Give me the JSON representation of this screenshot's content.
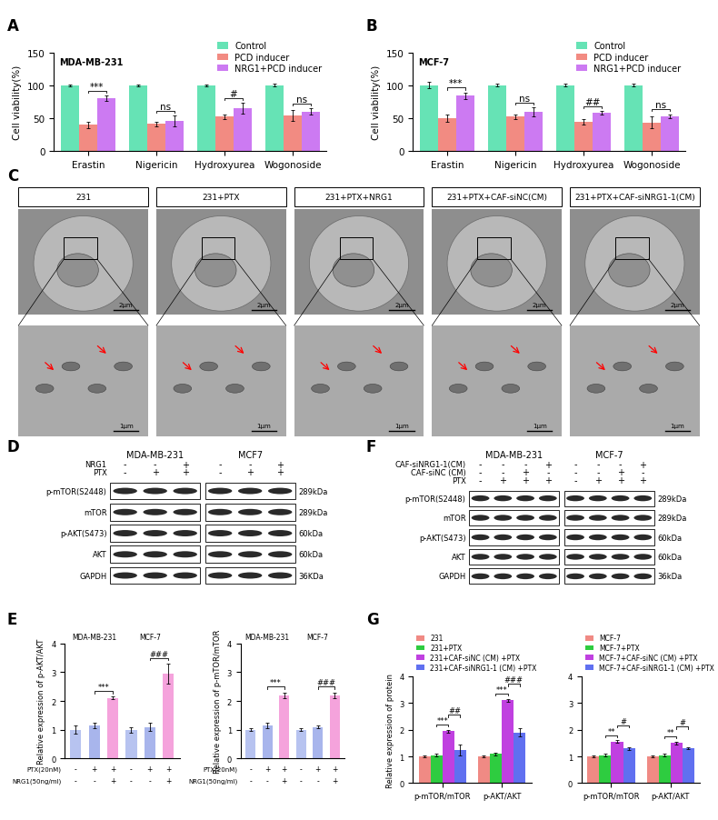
{
  "chart_data": [
    {
      "panel": "A",
      "type": "bar",
      "title": "MDA-MB-231",
      "ylabel": "Cell viability(%)",
      "categories": [
        "Erastin",
        "Nigericin",
        "Hydroxyurea",
        "Wogonoside"
      ],
      "series": [
        {
          "name": "Control",
          "color": "#66e3b5",
          "values": [
            100,
            100,
            100,
            100
          ],
          "errors": [
            1,
            1,
            1,
            2
          ]
        },
        {
          "name": "PCD inducer",
          "color": "#f28b82",
          "values": [
            40,
            41,
            52,
            54
          ],
          "errors": [
            5,
            4,
            4,
            8
          ]
        },
        {
          "name": "NRG1+PCD inducer",
          "color": "#cc7af2",
          "values": [
            80,
            46,
            65,
            60
          ],
          "errors": [
            4,
            8,
            8,
            5
          ]
        }
      ],
      "ylim": [
        0,
        150
      ],
      "yticks": [
        0,
        50,
        100,
        150
      ],
      "legend": "upper right",
      "significance": [
        {
          "category": 0,
          "series": [
            1,
            2
          ],
          "label": "***"
        },
        {
          "category": 1,
          "series": [
            1,
            2
          ],
          "label": "ns"
        },
        {
          "category": 2,
          "series": [
            1,
            2
          ],
          "label": "#"
        },
        {
          "category": 3,
          "series": [
            1,
            2
          ],
          "label": "ns"
        }
      ]
    },
    {
      "panel": "B",
      "type": "bar",
      "title": "MCF-7",
      "ylabel": "Cell viability(%)",
      "categories": [
        "Erastin",
        "Nigericin",
        "Hydroxyurea",
        "Wogonoside"
      ],
      "series": [
        {
          "name": "Control",
          "color": "#66e3b5",
          "values": [
            100,
            100,
            100,
            100
          ],
          "errors": [
            5,
            2,
            2,
            2
          ]
        },
        {
          "name": "PCD inducer",
          "color": "#f28b82",
          "values": [
            50,
            52,
            44,
            43
          ],
          "errors": [
            6,
            3,
            4,
            9
          ]
        },
        {
          "name": "NRG1+PCD inducer",
          "color": "#cc7af2",
          "values": [
            84,
            59,
            58,
            53
          ],
          "errors": [
            5,
            7,
            3,
            3
          ]
        }
      ],
      "ylim": [
        0,
        150
      ],
      "yticks": [
        0,
        50,
        100,
        150
      ],
      "legend": "upper right",
      "significance": [
        {
          "category": 0,
          "series": [
            1,
            2
          ],
          "label": "***"
        },
        {
          "category": 1,
          "series": [
            1,
            2
          ],
          "label": "ns"
        },
        {
          "category": 2,
          "series": [
            1,
            2
          ],
          "label": "##"
        },
        {
          "category": 3,
          "series": [
            1,
            2
          ],
          "label": "ns"
        }
      ]
    },
    {
      "panel": "E",
      "type": "bar",
      "ylabel": "Relative expression of p-AKT/AKT",
      "categories": [
        null,
        null,
        null,
        null,
        null,
        null
      ],
      "groups": [
        "MDA-MB-231",
        "MCF-7"
      ],
      "values": [
        1.0,
        1.15,
        2.1,
        1.0,
        1.1,
        2.95
      ],
      "errors": [
        0.15,
        0.1,
        0.05,
        0.1,
        0.15,
        0.35
      ],
      "colors": [
        "#b7c3f0",
        "#a8b5ec",
        "#f5a3dc",
        "#b7c3f0",
        "#a8b5ec",
        "#f5a3dc"
      ],
      "conditions": [
        {
          "label": "PTX(20nM)",
          "values": [
            "-",
            "+",
            "+",
            "-",
            "+",
            "+"
          ]
        },
        {
          "label": "NRG1(50ng/ml)",
          "values": [
            "-",
            "-",
            "+",
            "-",
            "-",
            "+"
          ]
        }
      ],
      "ylim": [
        0,
        4
      ],
      "yticks": [
        0,
        1,
        2,
        3,
        4
      ],
      "tick_labels": "y",
      "significance": [
        {
          "bars": [
            1,
            2
          ],
          "label": "***"
        },
        {
          "bars": [
            4,
            5
          ],
          "label": "###"
        }
      ]
    },
    {
      "type": "bar",
      "ylabel": "Relative expression of p-mTOR/mTOR",
      "categories": [
        null,
        null,
        null,
        null,
        null,
        null
      ],
      "groups": [
        "MDA-MB-231",
        "MCF-7"
      ],
      "values": [
        1.0,
        1.15,
        2.2,
        1.0,
        1.1,
        2.2
      ],
      "errors": [
        0.05,
        0.1,
        0.1,
        0.05,
        0.05,
        0.1
      ],
      "colors": [
        "#b7c3f0",
        "#a8b5ec",
        "#f5a3dc",
        "#b7c3f0",
        "#a8b5ec",
        "#f5a3dc"
      ],
      "conditions": [
        {
          "label": "PTX(20nM)",
          "values": [
            "-",
            "+",
            "+",
            "-",
            "+",
            "+"
          ]
        },
        {
          "label": "NRG1(50ng/ml)",
          "values": [
            "-",
            "-",
            "+",
            "-",
            "-",
            "+"
          ]
        }
      ],
      "ylim": [
        0,
        4
      ],
      "yticks": [
        0,
        1,
        2,
        3,
        4
      ],
      "tick_labels": "y",
      "significance": [
        {
          "bars": [
            1,
            2
          ],
          "label": "***"
        },
        {
          "bars": [
            4,
            5
          ],
          "label": "###"
        }
      ]
    },
    {
      "panel": "G",
      "type": "bar",
      "ylabel": "Relative expression of protein",
      "categories": [
        "p-mTOR/mTOR",
        "p-AKT/AKT"
      ],
      "series": [
        {
          "name": "231",
          "color": "#f08a84",
          "values": [
            1.0,
            1.0
          ],
          "errors": [
            0.03,
            0.05
          ]
        },
        {
          "name": "231+PTX",
          "color": "#2ecc40",
          "values": [
            1.05,
            1.1
          ],
          "errors": [
            0.05,
            0.05
          ]
        },
        {
          "name": "231+CAF-siNC (CM) +PTX",
          "color": "#c040e0",
          "values": [
            1.95,
            3.1
          ],
          "errors": [
            0.05,
            0.05
          ]
        },
        {
          "name": "231+CAF-siNRG1-1 (CM) +PTX",
          "color": "#6070f0",
          "values": [
            1.25,
            1.9
          ],
          "errors": [
            0.2,
            0.15
          ]
        }
      ],
      "ylim": [
        0,
        4
      ],
      "yticks": [
        0,
        1,
        2,
        3,
        4
      ],
      "legend": "lower left",
      "significance": [
        {
          "category": 0,
          "series": [
            1,
            2
          ],
          "label": "***"
        },
        {
          "category": 0,
          "series": [
            2,
            3
          ],
          "label": "##"
        },
        {
          "category": 1,
          "series": [
            1,
            2
          ],
          "label": "***"
        },
        {
          "category": 1,
          "series": [
            2,
            3
          ],
          "label": "###"
        }
      ]
    },
    {
      "type": "bar",
      "categories": [
        "p-mTOR/mTOR",
        "p-AKT/AKT"
      ],
      "series": [
        {
          "name": "MCF-7",
          "color": "#f08a84",
          "values": [
            1.0,
            1.0
          ],
          "errors": [
            0.03,
            0.05
          ]
        },
        {
          "name": "MCF-7+PTX",
          "color": "#2ecc40",
          "values": [
            1.05,
            1.05
          ],
          "errors": [
            0.05,
            0.05
          ]
        },
        {
          "name": "MCF-7+CAF-siNC (CM) +PTX",
          "color": "#c040e0",
          "values": [
            1.55,
            1.5
          ],
          "errors": [
            0.05,
            0.05
          ]
        },
        {
          "name": "MCF-7+CAF-siNRG1-1 (CM) +PTX",
          "color": "#6070f0",
          "values": [
            1.3,
            1.3
          ],
          "errors": [
            0.05,
            0.03
          ]
        }
      ],
      "ylim": [
        0,
        4
      ],
      "yticks": [
        0,
        1,
        2,
        3,
        4
      ],
      "legend": "lower left",
      "significance": [
        {
          "category": 0,
          "series": [
            1,
            2
          ],
          "label": "**"
        },
        {
          "category": 0,
          "series": [
            2,
            3
          ],
          "label": "#"
        },
        {
          "category": 1,
          "series": [
            1,
            2
          ],
          "label": "**"
        },
        {
          "category": 1,
          "series": [
            2,
            3
          ],
          "label": "#"
        }
      ]
    }
  ],
  "micrographs": {
    "panel": "C",
    "columns": [
      "231",
      "231+PTX",
      "231+PTX+NRG1",
      "231+PTX+CAF-siNC(CM)",
      "231+PTX+CAF-siNRG1-1(CM)"
    ],
    "scale_bars": [
      "2μm",
      "1μm"
    ]
  },
  "blots": [
    {
      "panel": "D",
      "cell_lines": [
        "MDA-MB-231",
        "MCF7"
      ],
      "conditions": [
        {
          "label": "NRG1",
          "values": [
            "-",
            "-",
            "+",
            "-",
            "-",
            "+"
          ]
        },
        {
          "label": "PTX",
          "values": [
            "-",
            "+",
            "+",
            "-",
            "+",
            "+"
          ]
        }
      ],
      "proteins": [
        {
          "name": "p-mTOR(S2448)",
          "size": "289kDa"
        },
        {
          "name": "mTOR",
          "size": "289kDa"
        },
        {
          "name": "p-AKT(S473)",
          "size": "60kDa"
        },
        {
          "name": "AKT",
          "size": "60kDa"
        },
        {
          "name": "GAPDH",
          "size": "36KDa"
        }
      ]
    },
    {
      "panel": "F",
      "cell_lines": [
        "MDA-MB-231",
        "MCF-7"
      ],
      "conditions": [
        {
          "label": "CAF-siNRG1-1(CM)",
          "values": [
            "-",
            "-",
            "-",
            "+",
            "-",
            "-",
            "-",
            "+"
          ]
        },
        {
          "label": "CAF-siNC (CM)",
          "values": [
            "-",
            "-",
            "+",
            "-",
            "-",
            "-",
            "+",
            "-"
          ]
        },
        {
          "label": "PTX",
          "values": [
            "-",
            "+",
            "+",
            "+",
            "-",
            "+",
            "+",
            "+"
          ]
        }
      ],
      "proteins": [
        {
          "name": "p-mTOR(S2448)",
          "size": "289kDa"
        },
        {
          "name": "mTOR",
          "size": "289kDa"
        },
        {
          "name": "p-AKT(S473)",
          "size": "60kDa"
        },
        {
          "name": "AKT",
          "size": "60kDa"
        },
        {
          "name": "GAPDH",
          "size": "36kDa"
        }
      ]
    }
  ]
}
